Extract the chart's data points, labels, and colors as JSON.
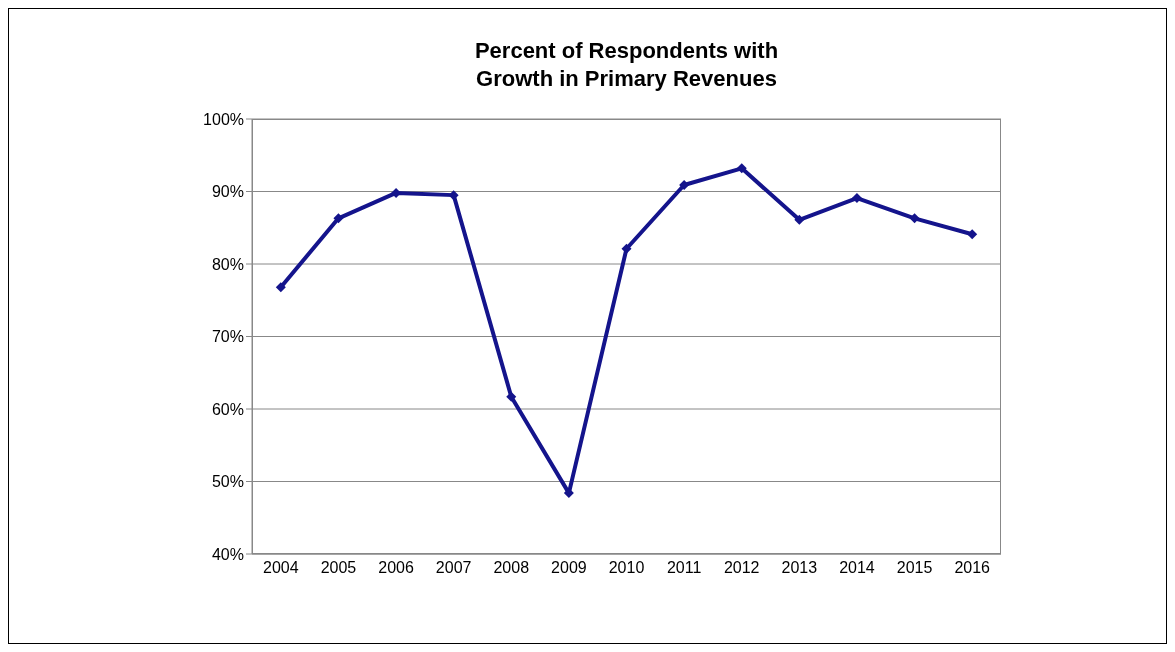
{
  "chart_data": {
    "type": "line",
    "title": "Percent of Respondents with\nGrowth in Primary Revenues",
    "categories": [
      "2004",
      "2005",
      "2006",
      "2007",
      "2008",
      "2009",
      "2010",
      "2011",
      "2012",
      "2013",
      "2014",
      "2015",
      "2016"
    ],
    "series": [
      {
        "color": "#14148c",
        "values": [
          76.8,
          86.3,
          89.8,
          89.5,
          61.7,
          48.4,
          82.1,
          90.9,
          93.2,
          86.1,
          89.1,
          86.3,
          84.1
        ]
      }
    ],
    "ylim": [
      40,
      100
    ],
    "yticks": [
      {
        "value": 40,
        "label": "40%"
      },
      {
        "value": 50,
        "label": "50%"
      },
      {
        "value": 60,
        "label": "60%"
      },
      {
        "value": 70,
        "label": "70%"
      },
      {
        "value": 80,
        "label": "80%"
      },
      {
        "value": 90,
        "label": "90%"
      },
      {
        "value": 100,
        "label": "100%"
      }
    ],
    "grid": "y",
    "marker": "diamond",
    "legend": false
  }
}
